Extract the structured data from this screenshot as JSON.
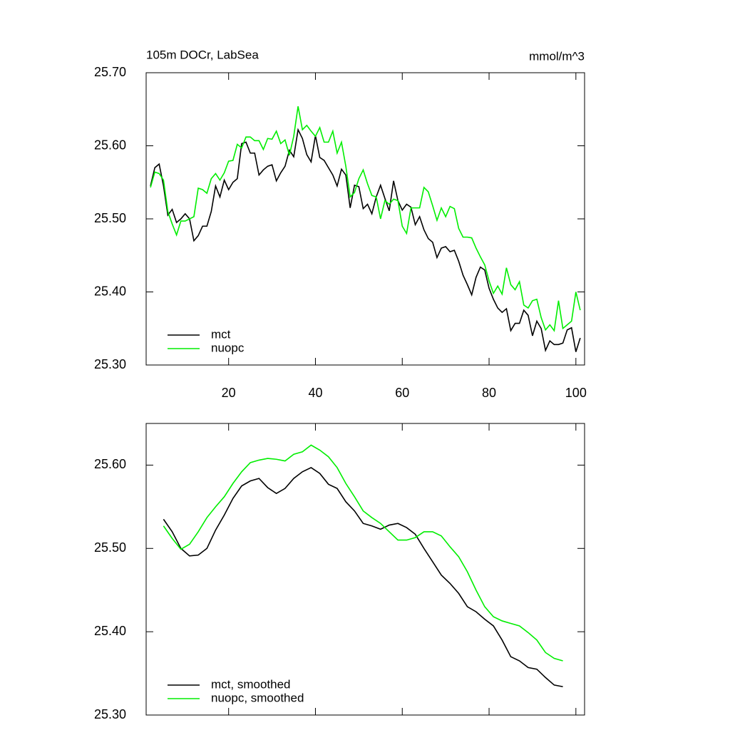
{
  "chart_data": [
    {
      "type": "line",
      "title": "105m DOCr, LabSea",
      "units": "mmol/m^3",
      "x": [
        2,
        3,
        4,
        5,
        6,
        7,
        8,
        9,
        10,
        11,
        12,
        13,
        14,
        15,
        16,
        17,
        18,
        19,
        20,
        21,
        22,
        23,
        24,
        25,
        26,
        27,
        28,
        29,
        30,
        31,
        32,
        33,
        34,
        35,
        36,
        37,
        38,
        39,
        40,
        41,
        42,
        43,
        44,
        45,
        46,
        47,
        48,
        49,
        50,
        51,
        52,
        53,
        54,
        55,
        56,
        57,
        58,
        59,
        60,
        61,
        62,
        63,
        64,
        65,
        66,
        67,
        68,
        69,
        70,
        71,
        72,
        73,
        74,
        75,
        76,
        77,
        78,
        79,
        80,
        81,
        82,
        83,
        84,
        85,
        86,
        87,
        88,
        89,
        90,
        91,
        92,
        93,
        94,
        95,
        96,
        97,
        98,
        99,
        100,
        101
      ],
      "series": [
        {
          "name": "mct",
          "color": "#000000",
          "values": [
            25.545,
            25.57,
            25.575,
            25.545,
            25.505,
            25.513,
            25.495,
            25.5,
            25.507,
            25.5,
            25.47,
            25.477,
            25.49,
            25.49,
            25.51,
            25.545,
            25.53,
            25.553,
            25.54,
            25.55,
            25.555,
            25.603,
            25.605,
            25.59,
            25.59,
            25.56,
            25.567,
            25.572,
            25.574,
            25.552,
            25.563,
            25.572,
            25.594,
            25.585,
            25.622,
            25.61,
            25.588,
            25.578,
            25.614,
            25.584,
            25.58,
            25.57,
            25.56,
            25.545,
            25.568,
            25.56,
            25.515,
            25.546,
            25.544,
            25.514,
            25.52,
            25.507,
            25.53,
            25.546,
            25.528,
            25.511,
            25.552,
            25.525,
            25.512,
            25.52,
            25.516,
            25.492,
            25.503,
            25.485,
            25.473,
            25.468,
            25.447,
            25.46,
            25.462,
            25.455,
            25.457,
            25.442,
            25.423,
            25.41,
            25.396,
            25.42,
            25.434,
            25.43,
            25.405,
            25.39,
            25.378,
            25.372,
            25.377,
            25.347,
            25.357,
            25.357,
            25.375,
            25.368,
            25.34,
            25.36,
            25.35,
            25.32,
            25.333,
            25.328,
            25.328,
            25.33,
            25.348,
            25.351,
            25.318,
            25.337
          ]
        },
        {
          "name": "nuopc",
          "color": "#00ee00",
          "values": [
            25.543,
            25.564,
            25.562,
            25.553,
            25.51,
            25.493,
            25.478,
            25.497,
            25.497,
            25.5,
            25.503,
            25.542,
            25.54,
            25.535,
            25.555,
            25.562,
            25.553,
            25.563,
            25.579,
            25.58,
            25.602,
            25.597,
            25.612,
            25.612,
            25.607,
            25.607,
            25.595,
            25.61,
            25.609,
            25.62,
            25.603,
            25.608,
            25.587,
            25.613,
            25.654,
            25.622,
            25.628,
            25.62,
            25.613,
            25.625,
            25.605,
            25.605,
            25.62,
            25.59,
            25.605,
            25.572,
            25.53,
            25.536,
            25.555,
            25.567,
            25.548,
            25.532,
            25.53,
            25.5,
            25.525,
            25.52,
            25.527,
            25.525,
            25.49,
            25.48,
            25.515,
            25.515,
            25.515,
            25.543,
            25.537,
            25.518,
            25.498,
            25.515,
            25.503,
            25.517,
            25.514,
            25.487,
            25.475,
            25.475,
            25.474,
            25.46,
            25.448,
            25.437,
            25.415,
            25.398,
            25.408,
            25.397,
            25.433,
            25.41,
            25.403,
            25.414,
            25.382,
            25.378,
            25.388,
            25.39,
            25.365,
            25.348,
            25.355,
            25.347,
            25.388,
            25.35,
            25.355,
            25.36,
            25.4,
            25.375
          ]
        }
      ],
      "xlim": [
        1,
        102
      ],
      "xticks": [
        20,
        40,
        60,
        80,
        100
      ],
      "ylim": [
        25.3,
        25.7
      ],
      "yticks": [
        {
          "value": 25.3,
          "label": "25.30"
        },
        {
          "value": 25.4,
          "label": "25.40"
        },
        {
          "value": 25.5,
          "label": "25.50"
        },
        {
          "value": 25.6,
          "label": "25.60"
        },
        {
          "value": 25.7,
          "label": "25.70"
        }
      ],
      "legend": "lower left",
      "xtick_labels": true
    },
    {
      "type": "line",
      "x": [
        5,
        7,
        9,
        11,
        13,
        15,
        17,
        19,
        21,
        23,
        25,
        27,
        29,
        31,
        33,
        35,
        37,
        39,
        41,
        43,
        45,
        47,
        49,
        51,
        53,
        55,
        57,
        59,
        61,
        63,
        65,
        67,
        69,
        71,
        73,
        75,
        77,
        79,
        81,
        83,
        85,
        87,
        89,
        91,
        93,
        95,
        97
      ],
      "series": [
        {
          "name": "mct, smoothed",
          "color": "#000000",
          "values": [
            25.535,
            25.52,
            25.5,
            25.491,
            25.492,
            25.5,
            25.522,
            25.54,
            25.56,
            25.575,
            25.581,
            25.584,
            25.573,
            25.566,
            25.572,
            25.584,
            25.592,
            25.597,
            25.59,
            25.577,
            25.572,
            25.556,
            25.545,
            25.53,
            25.527,
            25.523,
            25.528,
            25.53,
            25.525,
            25.517,
            25.5,
            25.484,
            25.468,
            25.458,
            25.446,
            25.43,
            25.424,
            25.415,
            25.407,
            25.39,
            25.37,
            25.365,
            25.357,
            25.355,
            25.345,
            25.336,
            25.334
          ]
        },
        {
          "name": "nuopc, smoothed",
          "color": "#00ee00",
          "values": [
            25.527,
            25.512,
            25.499,
            25.505,
            25.52,
            25.537,
            25.55,
            25.562,
            25.578,
            25.592,
            25.603,
            25.606,
            25.608,
            25.607,
            25.605,
            25.613,
            25.616,
            25.624,
            25.618,
            25.61,
            25.597,
            25.578,
            25.562,
            25.545,
            25.537,
            25.53,
            25.52,
            25.51,
            25.51,
            25.513,
            25.52,
            25.52,
            25.515,
            25.502,
            25.49,
            25.472,
            25.45,
            25.43,
            25.418,
            25.413,
            25.41,
            25.407,
            25.399,
            25.39,
            25.375,
            25.368,
            25.365
          ]
        }
      ],
      "xlim": [
        1,
        102
      ],
      "xticks": [
        20,
        40,
        60,
        80,
        100
      ],
      "ylim": [
        25.3,
        25.65
      ],
      "yticks": [
        {
          "value": 25.3,
          "label": "25.30"
        },
        {
          "value": 25.4,
          "label": "25.40"
        },
        {
          "value": 25.5,
          "label": "25.50"
        },
        {
          "value": 25.6,
          "label": "25.60"
        }
      ],
      "legend": "lower left",
      "xtick_labels": false
    }
  ]
}
